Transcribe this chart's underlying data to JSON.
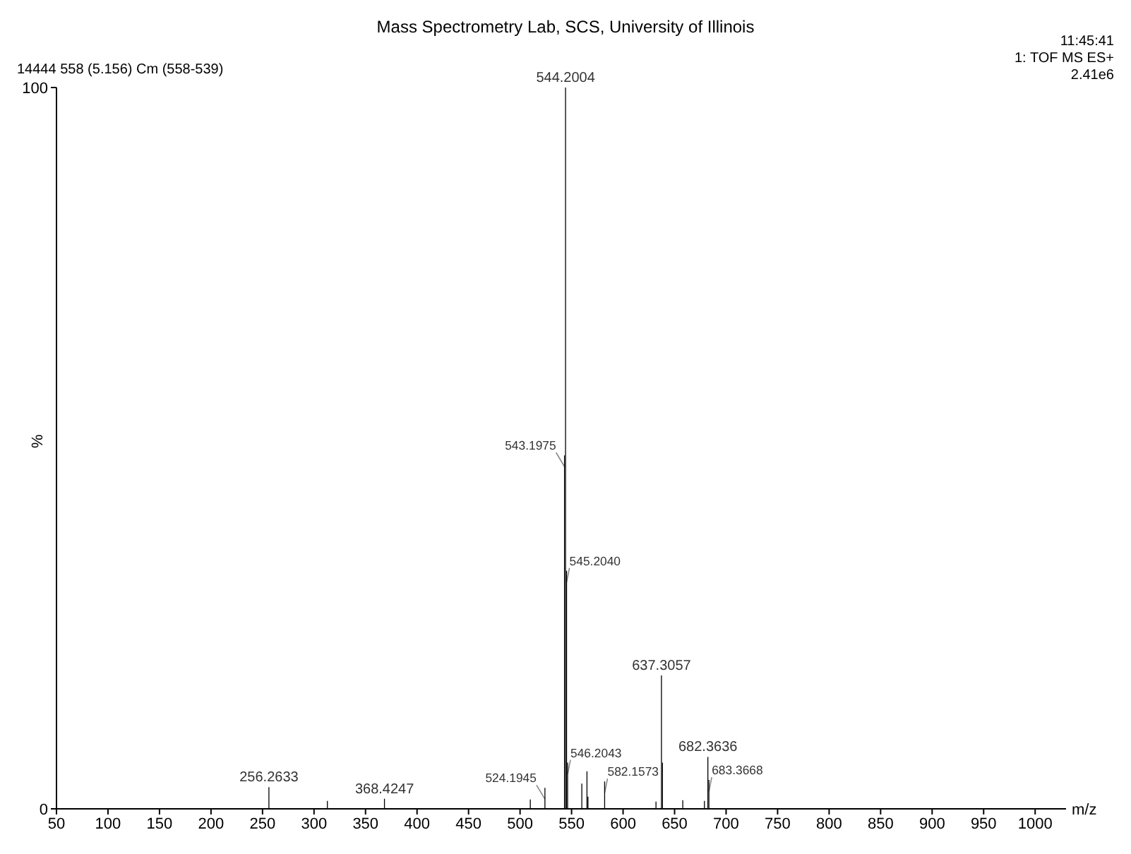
{
  "chart_data": {
    "type": "bar",
    "title": "Mass Spectrometry Lab, SCS, University of Illinois",
    "annotations": [
      "14444 558 (5.156) Cm (558-539)",
      "11:45:41",
      "1: TOF MS ES+",
      "2.41e6",
      {
        "text": "256.2633",
        "x": 256.2633,
        "y": 3.0
      },
      {
        "text": "368.4247",
        "x": 368.4247,
        "y": 1.4
      },
      {
        "text": "524.1945",
        "x": 524.1945,
        "y": 2.9
      },
      {
        "text": "543.1975",
        "x": 543.1975,
        "y": 49
      },
      {
        "text": "544.2004",
        "x": 544.2004,
        "y": 100
      },
      {
        "text": "545.2040",
        "x": 545.204,
        "y": 33
      },
      {
        "text": "546.2043",
        "x": 546.2043,
        "y": 6.4
      },
      {
        "text": "582.1573",
        "x": 582.1573,
        "y": 3.8
      },
      {
        "text": "637.3057",
        "x": 637.3057,
        "y": 18.5
      },
      {
        "text": "682.3636",
        "x": 682.3636,
        "y": 7.2
      },
      {
        "text": "683.3668",
        "x": 683.3668,
        "y": 4.0
      }
    ],
    "xlabel": "m/z",
    "ylabel": "%",
    "x": [
      256.2633,
      313,
      368.4247,
      510,
      524.1945,
      543.1975,
      544.2004,
      545.204,
      546.2043,
      560,
      565,
      566,
      582.1573,
      632,
      637.3057,
      638.3,
      658,
      679,
      682.3636,
      683.3668
    ],
    "values": [
      3.0,
      1.1,
      1.4,
      1.3,
      2.9,
      49,
      100,
      33,
      6.4,
      3.5,
      5.2,
      1.7,
      3.8,
      1.0,
      18.5,
      6.4,
      1.2,
      1.1,
      7.2,
      4.0
    ],
    "color": "#000000",
    "xlim": [
      50,
      1030
    ],
    "xticks": [
      50,
      100,
      150,
      200,
      250,
      300,
      350,
      400,
      450,
      500,
      550,
      600,
      650,
      700,
      750,
      800,
      850,
      900,
      950,
      1000
    ],
    "ylim": [
      0,
      100
    ],
    "yticks": [
      0,
      100
    ]
  }
}
